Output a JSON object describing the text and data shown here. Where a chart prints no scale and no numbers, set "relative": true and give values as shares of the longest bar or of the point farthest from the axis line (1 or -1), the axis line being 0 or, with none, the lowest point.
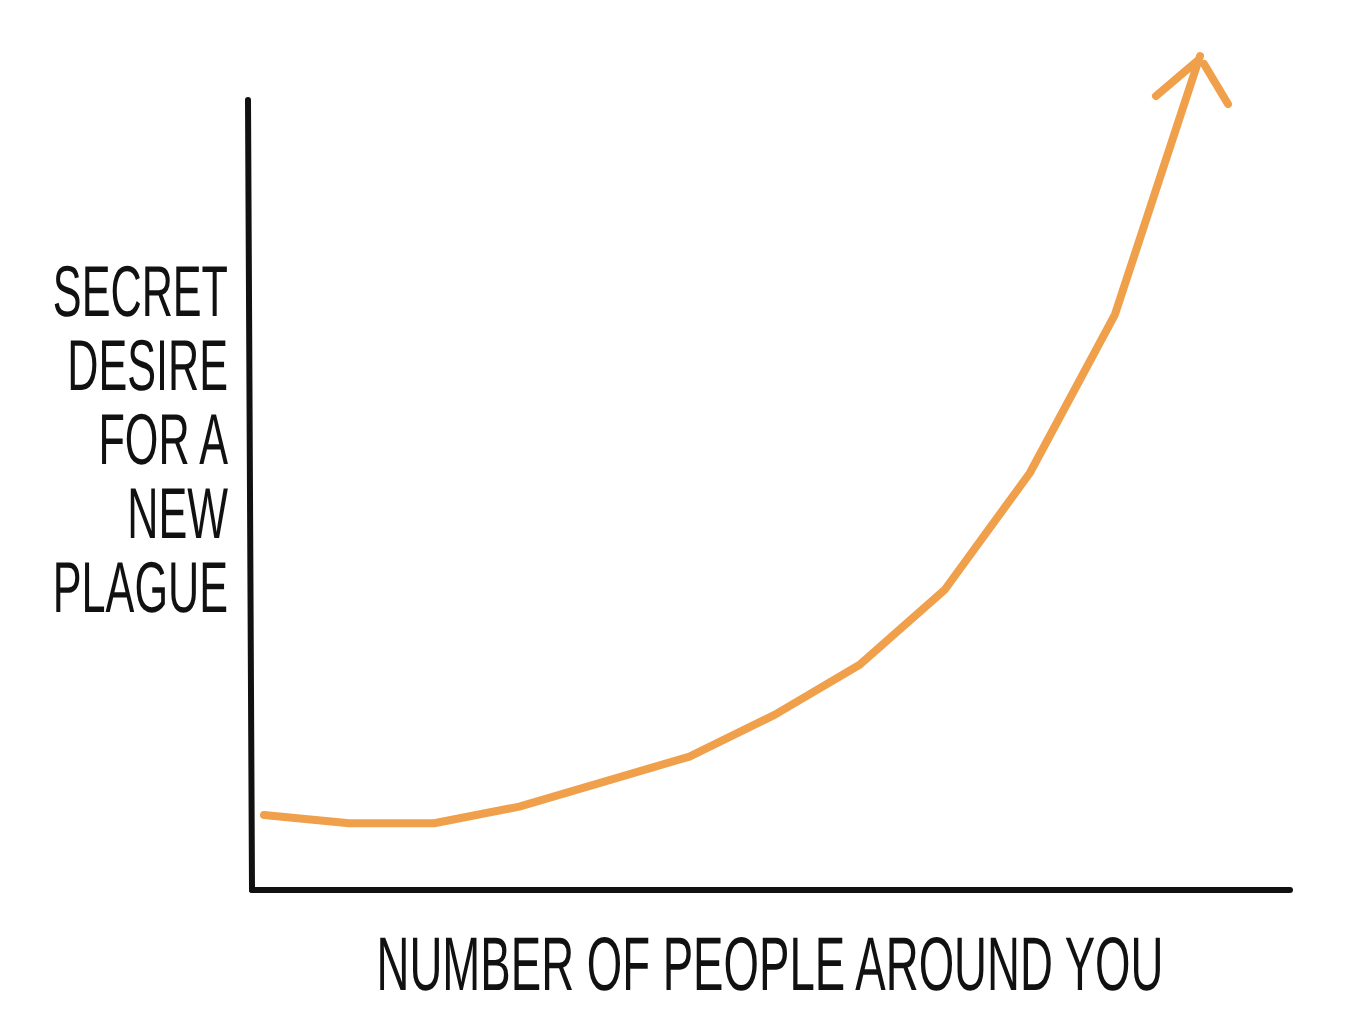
{
  "chart_data": {
    "type": "line",
    "relative": true,
    "xlabel": "NUMBER OF PEOPLE AROUND YOU",
    "ylabel": "SECRET DESIRE FOR A NEW PLAGUE",
    "categories": [
      null,
      null,
      null,
      null,
      null,
      null,
      null,
      null,
      null,
      null,
      null,
      null
    ],
    "series": [
      {
        "color": "#f0a04b",
        "values": [
          0.09,
          0.08,
          0.08,
          0.1,
          0.13,
          0.16,
          0.21,
          0.27,
          0.36,
          0.5,
          0.69,
          1.0
        ]
      }
    ],
    "marker": "none",
    "line_style": "solid"
  }
}
